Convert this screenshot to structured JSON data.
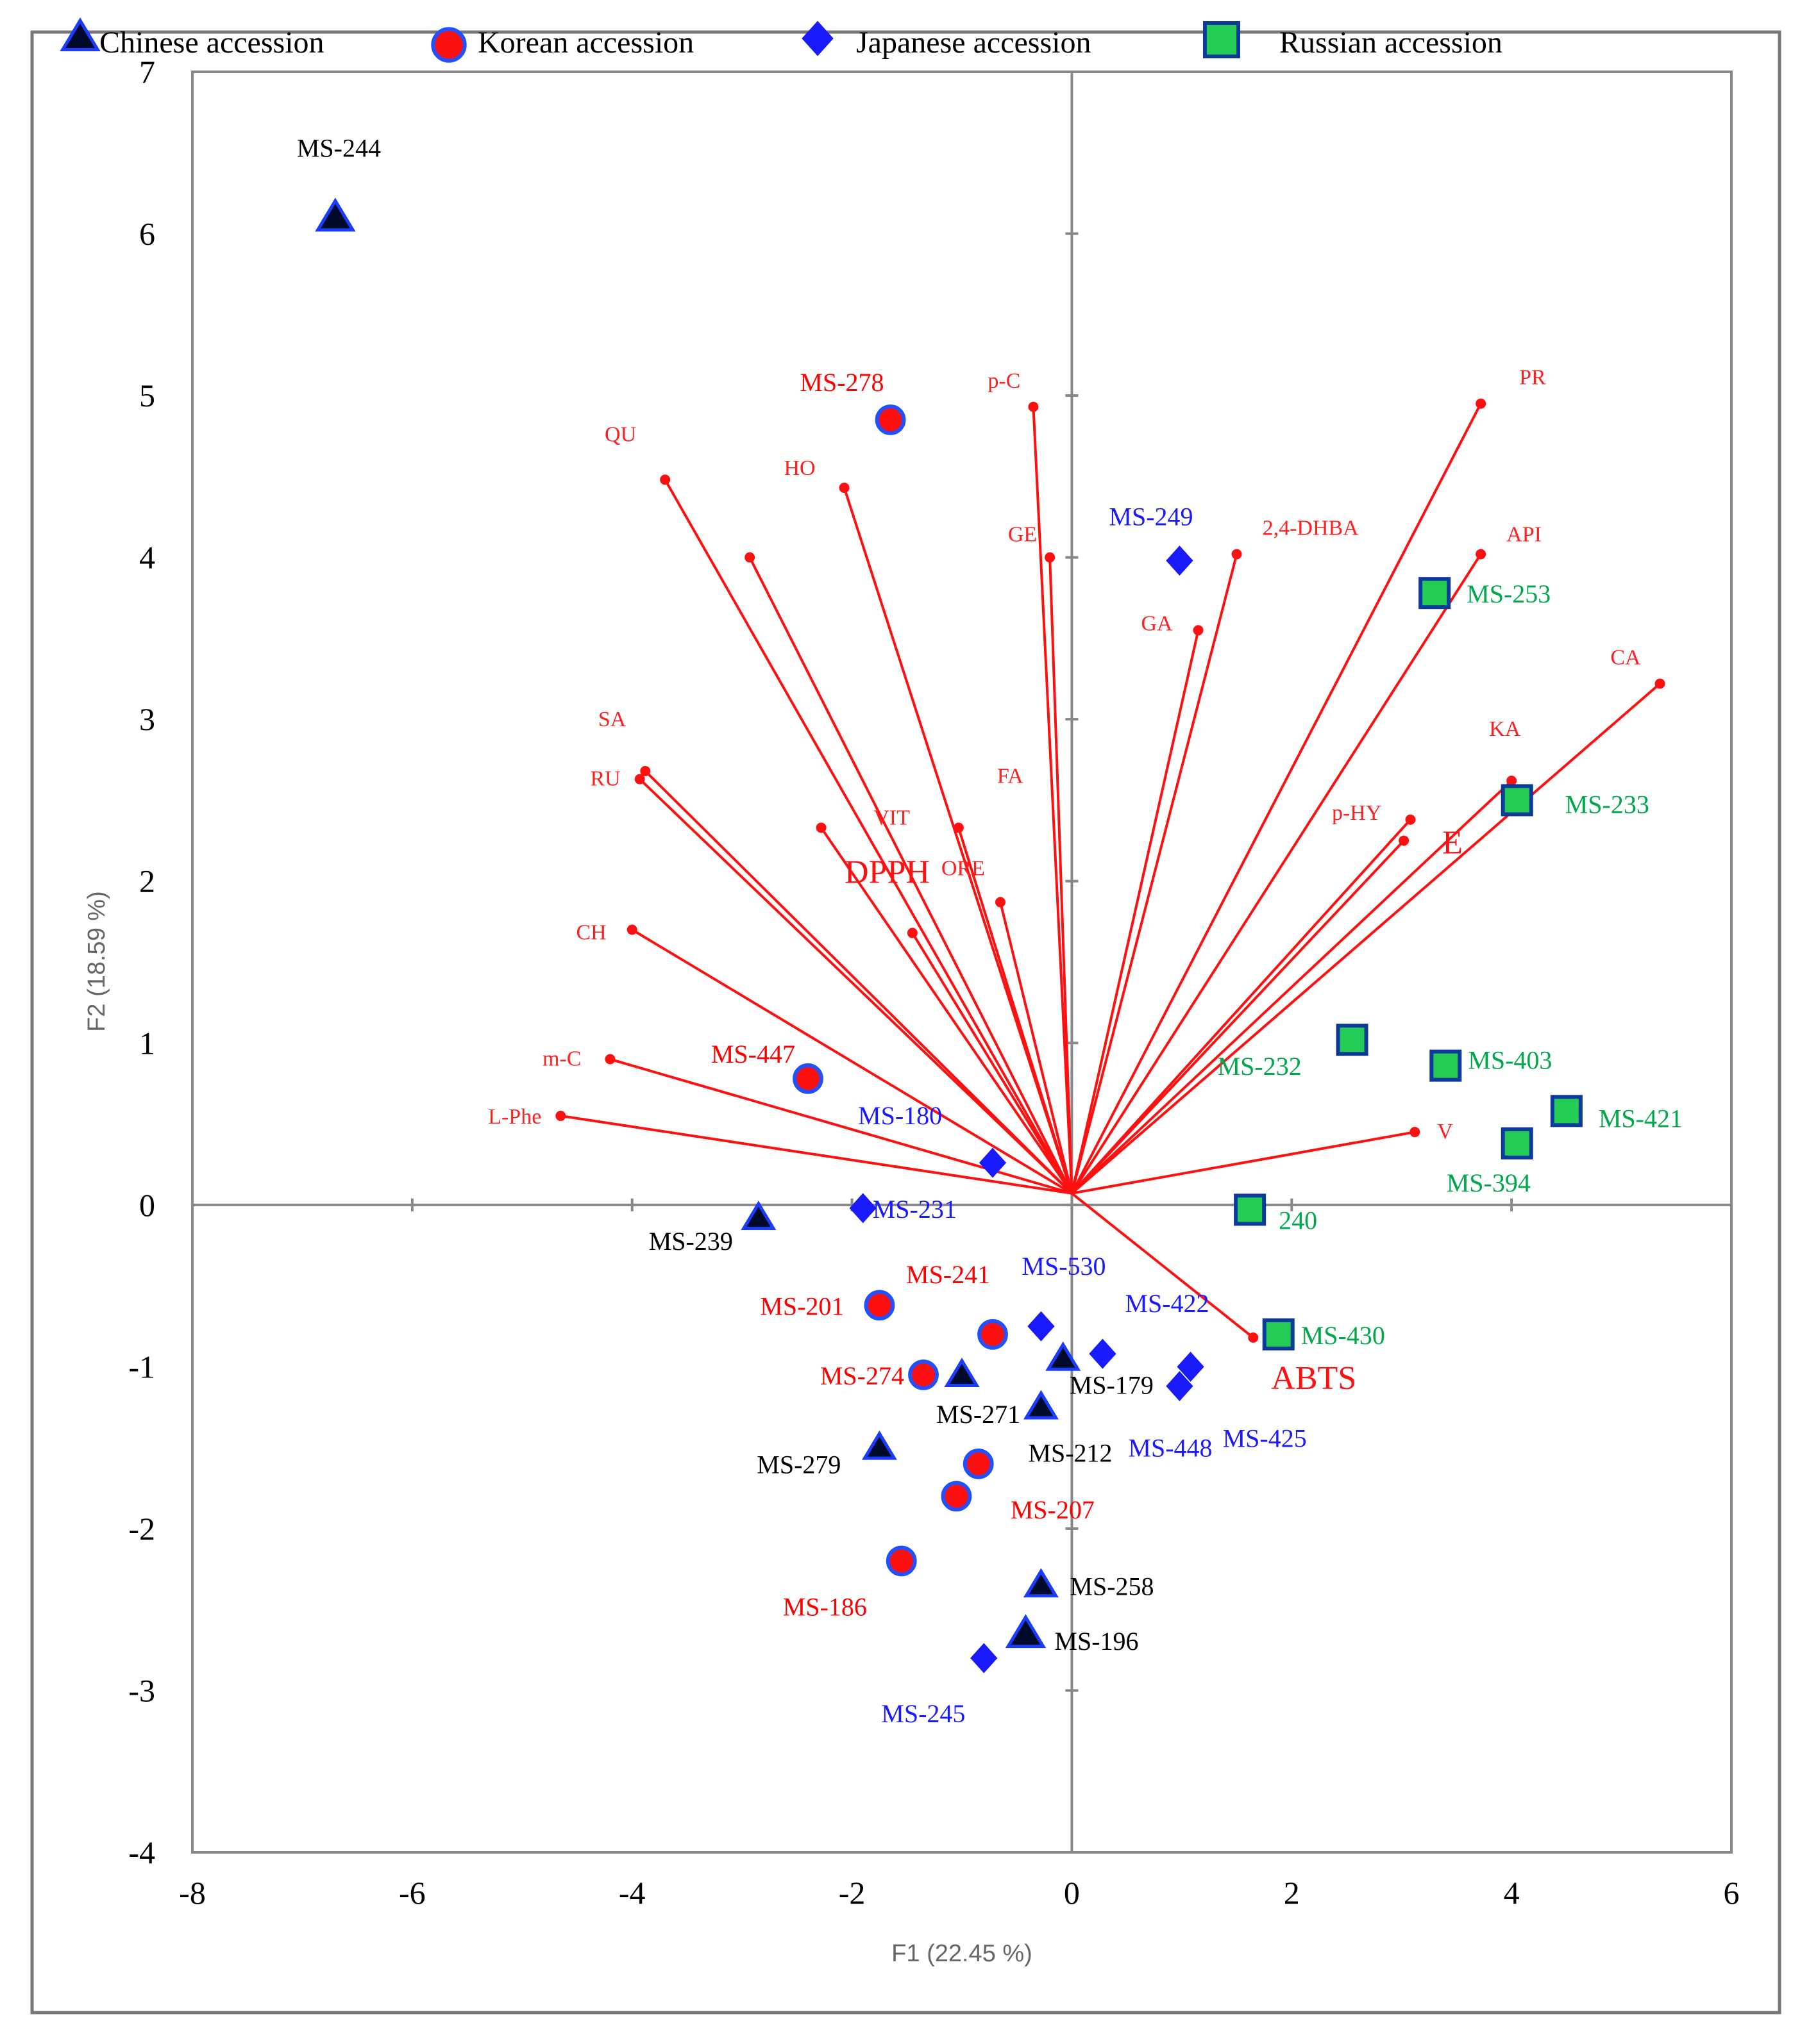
{
  "chart_data": {
    "type": "scatter",
    "subtype": "pca-biplot",
    "xlabel": "F1 (22.45 %)",
    "ylabel": "F2 (18.59 %)",
    "xlim": [
      -8,
      6
    ],
    "ylim": [
      -4,
      7
    ],
    "x_ticks": [
      -8,
      -6,
      -4,
      -2,
      0,
      2,
      4,
      6
    ],
    "y_ticks": [
      -4,
      -3,
      -2,
      -1,
      0,
      1,
      2,
      3,
      4,
      5,
      6,
      7
    ],
    "legend": {
      "position": "top",
      "entries": [
        {
          "name": "Chinese accession",
          "marker": "triangle",
          "color": "#000000"
        },
        {
          "name": "Korean accession",
          "marker": "circle",
          "color": "#ff0000"
        },
        {
          "name": "Japanese accession",
          "marker": "diamond",
          "color": "#1a1aff"
        },
        {
          "name": "Russian accession",
          "marker": "square",
          "color": "#22cc55"
        }
      ]
    },
    "series": [
      {
        "name": "Chinese accession",
        "marker": "triangle",
        "label_color": "#000000",
        "points": [
          {
            "label": "MS-244",
            "x": -6.7,
            "y": 6.1
          },
          {
            "label": "MS-239",
            "x": -2.85,
            "y": -0.08
          },
          {
            "label": "MS-279",
            "x": -1.75,
            "y": -1.5
          },
          {
            "label": "MS-271",
            "x": -1.0,
            "y": -1.05
          },
          {
            "label": "MS-212",
            "x": -0.28,
            "y": -1.25
          },
          {
            "label": "MS-179",
            "x": -0.08,
            "y": -0.95
          },
          {
            "label": "MS-258",
            "x": -0.28,
            "y": -2.35
          },
          {
            "label": "MS-196",
            "x": -0.42,
            "y": -2.65
          }
        ]
      },
      {
        "name": "Korean accession",
        "marker": "circle",
        "label_color": "#ff0000",
        "points": [
          {
            "label": "MS-278",
            "x": -1.65,
            "y": 4.85
          },
          {
            "label": "MS-447",
            "x": -2.4,
            "y": 0.78
          },
          {
            "label": "MS-201",
            "x": -1.75,
            "y": -0.62
          },
          {
            "label": "MS-241",
            "x": -0.72,
            "y": -0.8
          },
          {
            "label": "MS-274",
            "x": -1.35,
            "y": -1.05
          },
          {
            "label": "MS-207",
            "x": -0.85,
            "y": -1.6
          },
          {
            "label": "",
            "x": -1.05,
            "y": -1.8
          },
          {
            "label": "MS-186",
            "x": -1.55,
            "y": -2.2
          }
        ]
      },
      {
        "name": "Japanese accession",
        "marker": "diamond",
        "label_color": "#1a1aff",
        "points": [
          {
            "label": "MS-249",
            "x": 0.98,
            "y": 3.98
          },
          {
            "label": "MS-180",
            "x": -0.72,
            "y": 0.26
          },
          {
            "label": "MS-231",
            "x": -1.9,
            "y": -0.02
          },
          {
            "label": "MS-530",
            "x": -0.28,
            "y": -0.75
          },
          {
            "label": "MS-422",
            "x": 0.28,
            "y": -0.92
          },
          {
            "label": "MS-425",
            "x": 1.08,
            "y": -1.0
          },
          {
            "label": "MS-448",
            "x": 0.98,
            "y": -1.12
          },
          {
            "label": "MS-245",
            "x": -0.8,
            "y": -2.8
          }
        ]
      },
      {
        "name": "Russian accession",
        "marker": "square",
        "label_color": "#00a84a",
        "points": [
          {
            "label": "MS-253",
            "x": 3.3,
            "y": 3.78
          },
          {
            "label": "MS-233",
            "x": 4.05,
            "y": 2.5
          },
          {
            "label": "MS-232",
            "x": 2.55,
            "y": 1.02
          },
          {
            "label": "MS-403",
            "x": 3.4,
            "y": 0.86
          },
          {
            "label": "MS-421",
            "x": 4.5,
            "y": 0.58
          },
          {
            "label": "MS-394",
            "x": 4.05,
            "y": 0.38
          },
          {
            "label": "240",
            "x": 1.62,
            "y": -0.03
          },
          {
            "label": "MS-430",
            "x": 1.88,
            "y": -0.8
          }
        ]
      }
    ],
    "loadings": [
      {
        "label": "PR",
        "x": 3.72,
        "y": 4.95
      },
      {
        "label": "API",
        "x": 3.72,
        "y": 4.02
      },
      {
        "label": "CA",
        "x": 5.35,
        "y": 3.22
      },
      {
        "label": "KA",
        "x": 4.0,
        "y": 2.62
      },
      {
        "label": "p-HY",
        "x": 3.08,
        "y": 2.38
      },
      {
        "label": "E",
        "x": 3.02,
        "y": 2.25
      },
      {
        "label": "V",
        "x": 3.12,
        "y": 0.45
      },
      {
        "label": "ABTS",
        "x": 1.65,
        "y": -0.82
      },
      {
        "label": "2,4-DHBA",
        "x": 1.5,
        "y": 4.02
      },
      {
        "label": "GA",
        "x": 1.15,
        "y": 3.55
      },
      {
        "label": "p-C",
        "x": -0.35,
        "y": 4.93
      },
      {
        "label": "GE",
        "x": -0.2,
        "y": 4.0
      },
      {
        "label": "HO",
        "x": -2.07,
        "y": 4.43
      },
      {
        "label": "QU",
        "x": -3.7,
        "y": 4.48
      },
      {
        "label": "",
        "x": -2.93,
        "y": 4.0
      },
      {
        "label": "SA",
        "x": -3.88,
        "y": 2.68
      },
      {
        "label": "RU",
        "x": -3.93,
        "y": 2.63
      },
      {
        "label": "VIT",
        "x": -2.28,
        "y": 2.33
      },
      {
        "label": "FA",
        "x": -1.03,
        "y": 2.33
      },
      {
        "label": "ORE",
        "x": -1.45,
        "y": 1.68
      },
      {
        "label": "DPPH",
        "x": -0.65,
        "y": 1.87
      },
      {
        "label": "CH",
        "x": -4.0,
        "y": 1.7
      },
      {
        "label": "m-C",
        "x": -4.2,
        "y": 0.9
      },
      {
        "label": "L-Phe",
        "x": -4.65,
        "y": 0.55
      }
    ]
  }
}
